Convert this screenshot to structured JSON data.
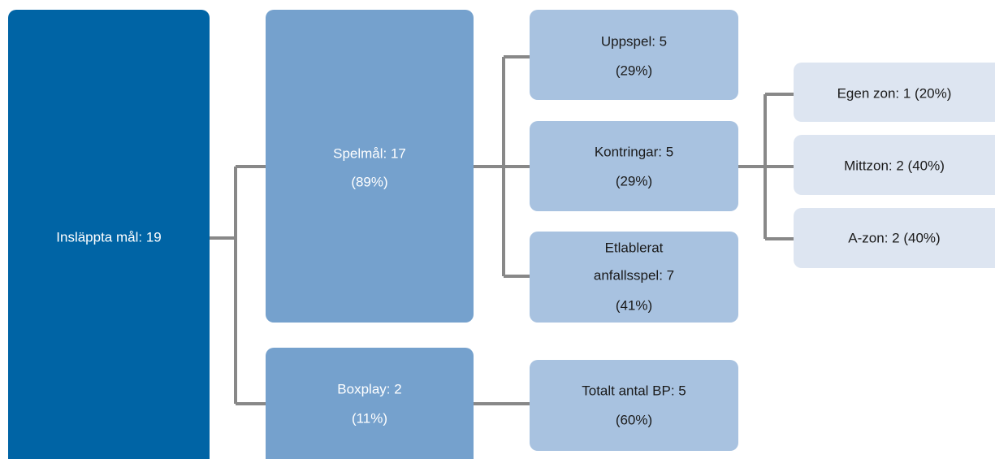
{
  "nodes": [
    {
      "lines": [
        "Insläppta mål: 19"
      ]
    },
    {
      "lines": [
        "Spelmål: 17",
        "(89%)"
      ]
    },
    {
      "lines": [
        "Boxplay: 2",
        "(11%)"
      ]
    },
    {
      "lines": [
        "Uppspel: 5",
        "(29%)"
      ]
    },
    {
      "lines": [
        "Kontringar: 5",
        "(29%)"
      ]
    },
    {
      "lines": [
        "Etlablerat",
        "anfallsspel: 7",
        "(41%)"
      ]
    },
    {
      "lines": [
        "Totalt antal BP: 5",
        "(60%)"
      ]
    },
    {
      "lines": [
        "Egen zon: 1 (20%)"
      ]
    },
    {
      "lines": [
        "Mittzon: 2 (40%)"
      ]
    },
    {
      "lines": [
        "A-zon: 2 (40%)"
      ]
    }
  ]
}
